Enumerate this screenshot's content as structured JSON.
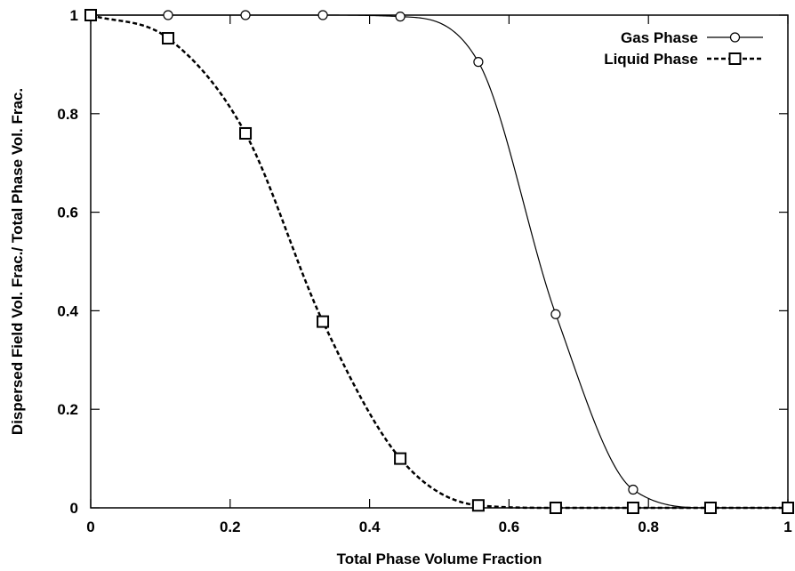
{
  "chart_data": {
    "type": "line",
    "title": "",
    "xlabel": "Total Phase Volume Fraction",
    "ylabel": "Dispersed Field Vol. Frac./ Total Phase Vol. Frac.",
    "xlim": [
      0,
      1
    ],
    "ylim": [
      0,
      1
    ],
    "xticks": [
      "0",
      "0.2",
      "0.4",
      "0.6",
      "0.8",
      "1"
    ],
    "yticks": [
      "0",
      "0.2",
      "0.4",
      "0.6",
      "0.8",
      "1"
    ],
    "grid": false,
    "legend_position": "top-right",
    "series": [
      {
        "name": "Gas Phase",
        "marker": "circle",
        "line_style": "solid",
        "color": "#000000",
        "x": [
          0,
          0.111,
          0.222,
          0.333,
          0.444,
          0.556,
          0.667,
          0.778,
          0.889,
          1.0
        ],
        "y": [
          1.0,
          1.0,
          1.0,
          1.0,
          0.997,
          0.905,
          0.393,
          0.037,
          0.0,
          0.0
        ]
      },
      {
        "name": "Liquid Phase",
        "marker": "square",
        "line_style": "dashed",
        "color": "#000000",
        "x": [
          0,
          0.111,
          0.222,
          0.333,
          0.444,
          0.556,
          0.667,
          0.778,
          0.889,
          1.0
        ],
        "y": [
          1.0,
          0.953,
          0.76,
          0.378,
          0.1,
          0.005,
          0.0,
          0.0,
          0.0,
          0.0
        ]
      }
    ]
  }
}
